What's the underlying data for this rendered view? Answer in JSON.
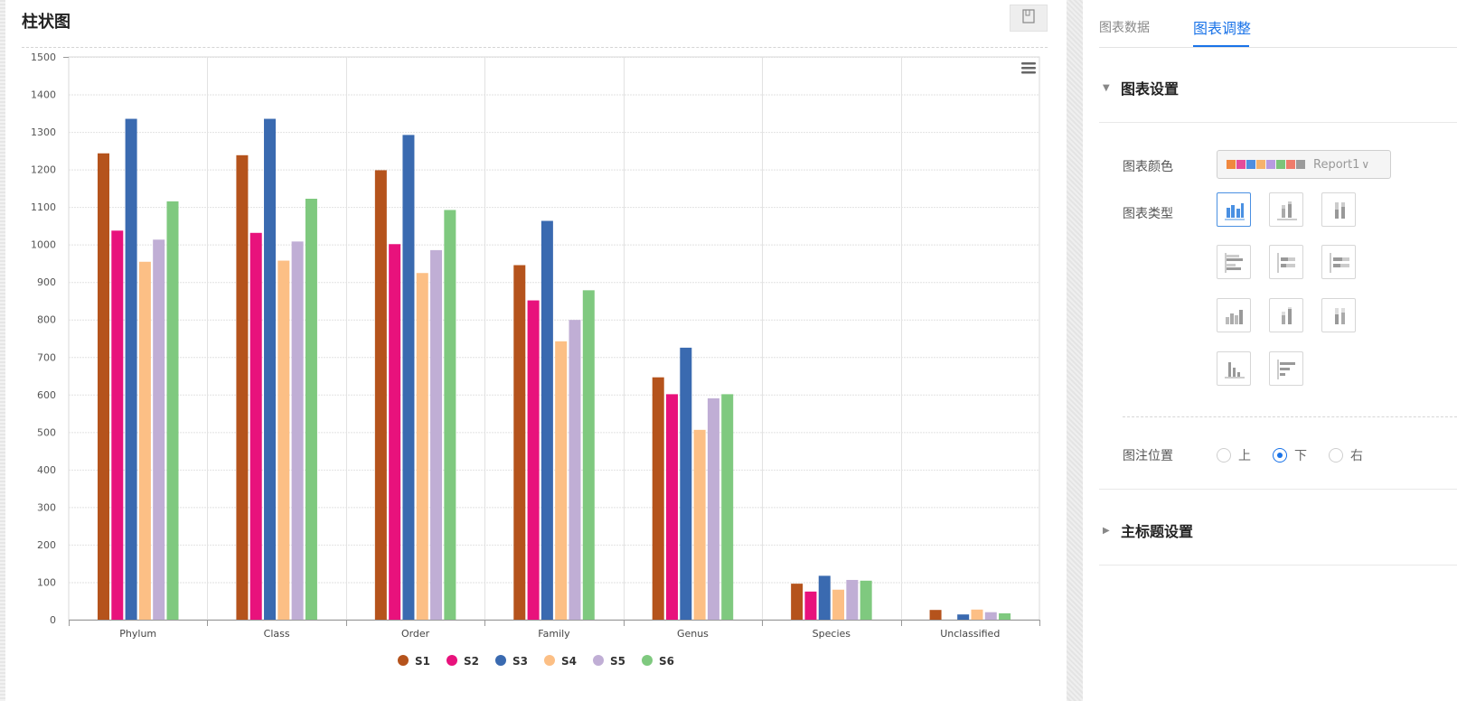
{
  "panel": {
    "title": "柱状图"
  },
  "corner_button": {
    "icon": "book-icon"
  },
  "chart_data": {
    "type": "bar",
    "categories": [
      "Phylum",
      "Class",
      "Order",
      "Family",
      "Genus",
      "Species",
      "Unclassified"
    ],
    "series": [
      {
        "name": "S1",
        "color": "#b5531c",
        "values": [
          1243,
          1238,
          1198,
          945,
          646,
          96,
          26
        ]
      },
      {
        "name": "S2",
        "color": "#e8127c",
        "values": [
          1037,
          1031,
          1001,
          851,
          601,
          75,
          0
        ]
      },
      {
        "name": "S3",
        "color": "#3a6ab0",
        "values": [
          1335,
          1335,
          1292,
          1063,
          725,
          117,
          14
        ]
      },
      {
        "name": "S4",
        "color": "#fcbf85",
        "values": [
          954,
          957,
          924,
          742,
          506,
          80,
          27
        ]
      },
      {
        "name": "S5",
        "color": "#c0aed5",
        "values": [
          1013,
          1008,
          985,
          799,
          590,
          106,
          20
        ]
      },
      {
        "name": "S6",
        "color": "#7fc97f",
        "values": [
          1115,
          1122,
          1092,
          878,
          601,
          104,
          17
        ]
      }
    ],
    "ylim": [
      0,
      1500
    ],
    "yticks": [
      0,
      100,
      200,
      300,
      400,
      500,
      600,
      700,
      800,
      900,
      1000,
      1100,
      1200,
      1300,
      1400,
      1500
    ],
    "grid": true,
    "legend_position": "bottom",
    "title": "",
    "xlabel": "",
    "ylabel": ""
  },
  "chart_menu": {
    "icon": "hamburger-menu-icon"
  },
  "tabs": [
    {
      "label": "图表数据"
    },
    {
      "label": "图表调整"
    }
  ],
  "sections": {
    "chart_settings": "图表设置",
    "main_title_settings": "主标题设置"
  },
  "fields": {
    "color_label": "图表颜色",
    "color_value": "Report1",
    "color_swatches": [
      "#f0883e",
      "#e44c9a",
      "#4e8ee0",
      "#f6b26b",
      "#b79ae0",
      "#7cc47a",
      "#ef7c6c",
      "#9b9b9b"
    ],
    "type_label": "图表类型",
    "legend_pos_label": "图注位置",
    "legend_options": [
      "上",
      "下",
      "右"
    ],
    "legend_selected": "下"
  },
  "chart_type_icons": [
    "grouped-bar-icon",
    "stacked-bar-icon",
    "percent-stacked-bar-icon",
    "grouped-horizontal-bar-icon",
    "stacked-horizontal-bar-icon",
    "percent-horizontal-bar-icon",
    "3d-grouped-bar-icon",
    "3d-stacked-bar-icon",
    "3d-percent-bar-icon",
    "single-bar-icon",
    "single-horizontal-bar-icon"
  ]
}
